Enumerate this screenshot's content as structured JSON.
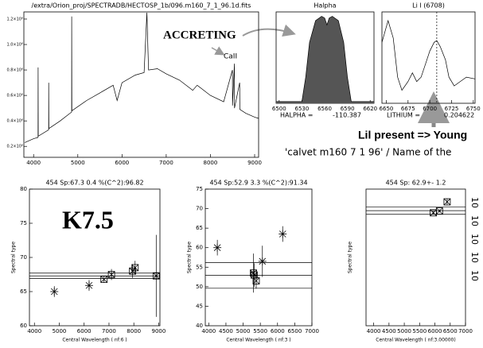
{
  "chart_data": [
    {
      "type": "line",
      "title": "/extra/Orion_proj/SPECTRADB/HECTOSP_1b/096.m160_7_1_96.1d.fits",
      "color": "#000000",
      "x": [
        3800,
        4000,
        4100,
        4102,
        4105,
        4340,
        4342,
        4345,
        4600,
        4860,
        4862,
        4865,
        5200,
        5500,
        5800,
        5890,
        6000,
        6300,
        6500,
        6563,
        6600,
        6800,
        7000,
        7300,
        7600,
        7700,
        8000,
        8300,
        8498,
        8500,
        8542,
        8545,
        8662,
        8665,
        8800,
        9000,
        9090
      ],
      "values": [
        230000,
        260000,
        270000,
        820000,
        280000,
        330000,
        700000,
        340000,
        400000,
        470000,
        1220000,
        480000,
        560000,
        620000,
        680000,
        560000,
        700000,
        760000,
        780000,
        1250000,
        800000,
        810000,
        770000,
        720000,
        640000,
        680000,
        600000,
        550000,
        800000,
        520000,
        850000,
        500000,
        700000,
        490000,
        460000,
        430000,
        420000
      ],
      "xlim": [
        3780,
        9090
      ],
      "xticks": [
        4000,
        5000,
        6000,
        7000,
        8000,
        9000
      ],
      "ylim": [
        114000,
        1256000
      ],
      "yticks": [
        {
          "value": 200000,
          "label": "0.2×10⁶"
        },
        {
          "value": 400000,
          "label": "0.4×10⁶"
        },
        {
          "value": 600000,
          "label": "0.6×10⁶"
        },
        {
          "value": 800000,
          "label": "0.8×10⁶"
        },
        {
          "value": 1000000,
          "label": "1.0×10⁶"
        },
        {
          "value": 1200000,
          "label": "1.2×10⁶"
        }
      ],
      "annotations": [
        "ACCRETING",
        "CaII"
      ]
    },
    {
      "type": "line",
      "title": "Halpha",
      "color": "#000000",
      "fill": "#555555",
      "x": [
        6496,
        6530,
        6535,
        6540,
        6548,
        6556,
        6560,
        6563,
        6566,
        6570,
        6578,
        6585,
        6590,
        6595,
        6625
      ],
      "values": [
        0.02,
        0.02,
        0.3,
        0.7,
        0.95,
        1.0,
        0.98,
        0.9,
        0.98,
        1.0,
        0.95,
        0.7,
        0.3,
        0.02,
        0.02
      ],
      "xlim": [
        6496,
        6625
      ],
      "xticks": [
        6500,
        6530,
        6560,
        6590,
        6620
      ],
      "ylim": [
        0,
        1.05
      ],
      "annotations": [
        "HALPHA =",
        "-110.387"
      ]
    },
    {
      "type": "line",
      "title": "Li I (6708)",
      "color": "#000000",
      "x": [
        6645,
        6652,
        6658,
        6663,
        6668,
        6675,
        6680,
        6685,
        6690,
        6695,
        6700,
        6705,
        6708,
        6712,
        6718,
        6722,
        6728,
        6735,
        6742,
        6752
      ],
      "values": [
        0.7,
        0.95,
        0.75,
        0.3,
        0.15,
        0.25,
        0.35,
        0.25,
        0.3,
        0.45,
        0.6,
        0.7,
        0.72,
        0.65,
        0.5,
        0.3,
        0.2,
        0.25,
        0.3,
        0.28
      ],
      "xlim": [
        6645,
        6752
      ],
      "xticks": [
        6650,
        6675,
        6700,
        6725,
        6750
      ],
      "ylim": [
        0,
        1.05
      ],
      "vline": 6708,
      "annotations": [
        "LITHIUM =",
        "0.204622",
        "Lil present => Young",
        "'calvet m160 7 1 96' / Name of the"
      ]
    },
    {
      "type": "scatter",
      "title": "454 Sp:67.3   0.4     %(C^2):96.82",
      "xlabel": "Central Wavelength ( nf:6 )",
      "ylabel": "Spectral type",
      "x": [
        4800,
        6200,
        6800,
        7100,
        7950,
        8050,
        8900
      ],
      "values": [
        65,
        65.9,
        66.8,
        67.5,
        68,
        68.5,
        67.3
      ],
      "errors": [
        0.8,
        0.8,
        0.5,
        0.8,
        1,
        1,
        6
      ],
      "markers": [
        "asterisk",
        "asterisk",
        "box",
        "box",
        "box",
        "box",
        "box"
      ],
      "hlines": [
        66.9,
        67.3,
        67.7
      ],
      "xlim": [
        3800,
        9050
      ],
      "xticks": [
        4000,
        5000,
        6000,
        7000,
        8000,
        9000
      ],
      "ylim": [
        60,
        80
      ],
      "yticks": [
        60,
        65,
        70,
        75,
        80
      ],
      "annotations": [
        "K7.5"
      ]
    },
    {
      "type": "scatter",
      "title": "454 Sp:52.9   3.3     %(C^2):91.34",
      "xlabel": "Central Wavelength ( nf:3 )",
      "ylabel": "Spectral type",
      "x": [
        4250,
        5300,
        5320,
        5380,
        5560,
        6150
      ],
      "values": [
        60,
        53.5,
        53,
        51.5,
        56.5,
        63.5
      ],
      "errors": [
        2,
        5,
        3,
        2,
        4,
        2
      ],
      "markers": [
        "asterisk",
        "box",
        "box",
        "box",
        "asterisk",
        "asterisk"
      ],
      "hlines": [
        49.6,
        52.9,
        56.2
      ],
      "xlim": [
        3900,
        7000
      ],
      "xticks": [
        4000,
        4500,
        5000,
        5500,
        6000,
        6500,
        7000
      ],
      "ylim": [
        40,
        75
      ],
      "yticks": [
        40,
        45,
        50,
        55,
        60,
        65,
        70,
        75
      ],
      "annotations": []
    },
    {
      "type": "scatter",
      "title": "454 Sp:     62.9+-        1.2",
      "xlabel": "Central Wavelength ( nf:3.00000)",
      "ylabel": "Spectral type",
      "x": [
        5950,
        6150,
        6400
      ],
      "values": [
        62.2,
        62.8,
        65.8
      ],
      "errors": [
        0.5,
        0.5,
        1
      ],
      "markers": [
        "box",
        "box",
        "box"
      ],
      "hlines": [
        61.7,
        62.9,
        64.1
      ],
      "xlim": [
        3750,
        7000
      ],
      "xticks": [
        4000,
        4500,
        5000,
        5500,
        6000,
        6500,
        7000
      ],
      "ylim": [
        25,
        70
      ],
      "annotations": [
        "10",
        "10",
        "10",
        "10",
        "10"
      ]
    }
  ]
}
